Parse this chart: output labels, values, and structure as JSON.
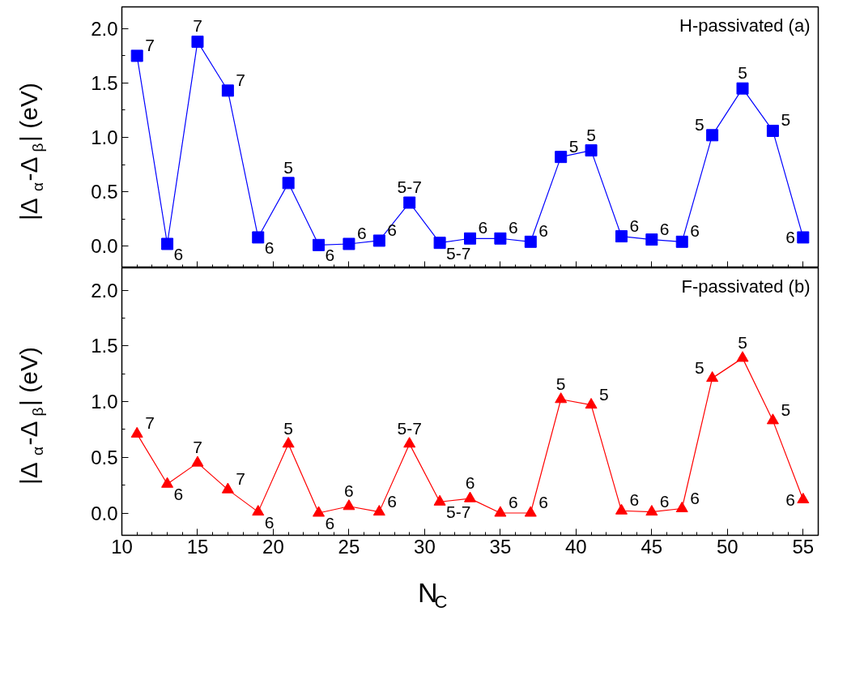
{
  "chart_data": [
    {
      "type": "line",
      "title": "H-passivated (a)",
      "ylabel": "|Δ$_{α}$-Δ$_{β}$| (eV)",
      "x": [
        11,
        13,
        15,
        17,
        19,
        21,
        23,
        25,
        27,
        29,
        31,
        33,
        35,
        37,
        39,
        41,
        43,
        45,
        47,
        49,
        51,
        53,
        55
      ],
      "series": [
        {
          "color": "#0000ff",
          "marker": "square",
          "values": [
            1.75,
            0.02,
            1.88,
            1.43,
            0.08,
            0.58,
            0.01,
            0.02,
            0.05,
            0.4,
            0.03,
            0.07,
            0.07,
            0.04,
            0.82,
            0.88,
            0.09,
            0.06,
            0.04,
            1.02,
            1.45,
            1.06,
            0.08
          ]
        }
      ],
      "value_labels": [
        "7",
        "6",
        "7",
        "7",
        "6",
        "5",
        "6",
        "6",
        "6",
        "5-7",
        "5-7",
        "6",
        "6",
        "6",
        "5",
        "5",
        "6",
        "6",
        "6",
        "5",
        "5",
        "5",
        "6"
      ],
      "xlim": [
        10,
        56
      ],
      "xticks": [
        10,
        15,
        20,
        25,
        30,
        35,
        40,
        45,
        50,
        55
      ],
      "ylim": [
        -0.2,
        2.2
      ],
      "tick_labels": "y",
      "yticks": [
        {
          "value": 0,
          "label": "0.0"
        },
        {
          "value": 0.5,
          "label": "0.5"
        },
        {
          "value": 1,
          "label": "1.0"
        },
        {
          "value": 1.5,
          "label": "1.5"
        },
        {
          "value": 2,
          "label": "2.0"
        }
      ],
      "grid": false,
      "line_style": "solid"
    },
    {
      "type": "line",
      "title": "F-passivated (b)",
      "ylabel": "|Δ$_{α}$-Δ$_{β}$| (eV)",
      "xlabel": "N$_{C}$",
      "x": [
        11,
        13,
        15,
        17,
        19,
        21,
        23,
        25,
        27,
        29,
        31,
        33,
        35,
        37,
        39,
        41,
        43,
        45,
        47,
        49,
        51,
        53,
        55
      ],
      "series": [
        {
          "color": "#ff0000",
          "marker": "triangle",
          "values": [
            0.71,
            0.26,
            0.45,
            0.21,
            0.01,
            0.62,
            0.0,
            0.06,
            0.01,
            0.62,
            0.1,
            0.13,
            0.0,
            0.0,
            1.02,
            0.97,
            0.02,
            0.01,
            0.04,
            1.21,
            1.39,
            0.83,
            0.12
          ]
        }
      ],
      "value_labels": [
        "7",
        "6",
        "7",
        "7",
        "6",
        "5",
        "6",
        "6",
        "6",
        "5-7",
        "5-7",
        "6",
        "6",
        "6",
        "5",
        "5",
        "6",
        "6",
        "6",
        "5",
        "5",
        "5",
        "6"
      ],
      "xlim": [
        10,
        56
      ],
      "xticks": [
        10,
        15,
        20,
        25,
        30,
        35,
        40,
        45,
        50,
        55
      ],
      "ylim": [
        -0.2,
        2.2
      ],
      "yticks": [
        {
          "value": 0,
          "label": "0.0"
        },
        {
          "value": 0.5,
          "label": "0.5"
        },
        {
          "value": 1,
          "label": "1.0"
        },
        {
          "value": 1.5,
          "label": "1.5"
        },
        {
          "value": 2,
          "label": "2.0"
        }
      ],
      "grid": false,
      "line_style": "solid"
    }
  ]
}
